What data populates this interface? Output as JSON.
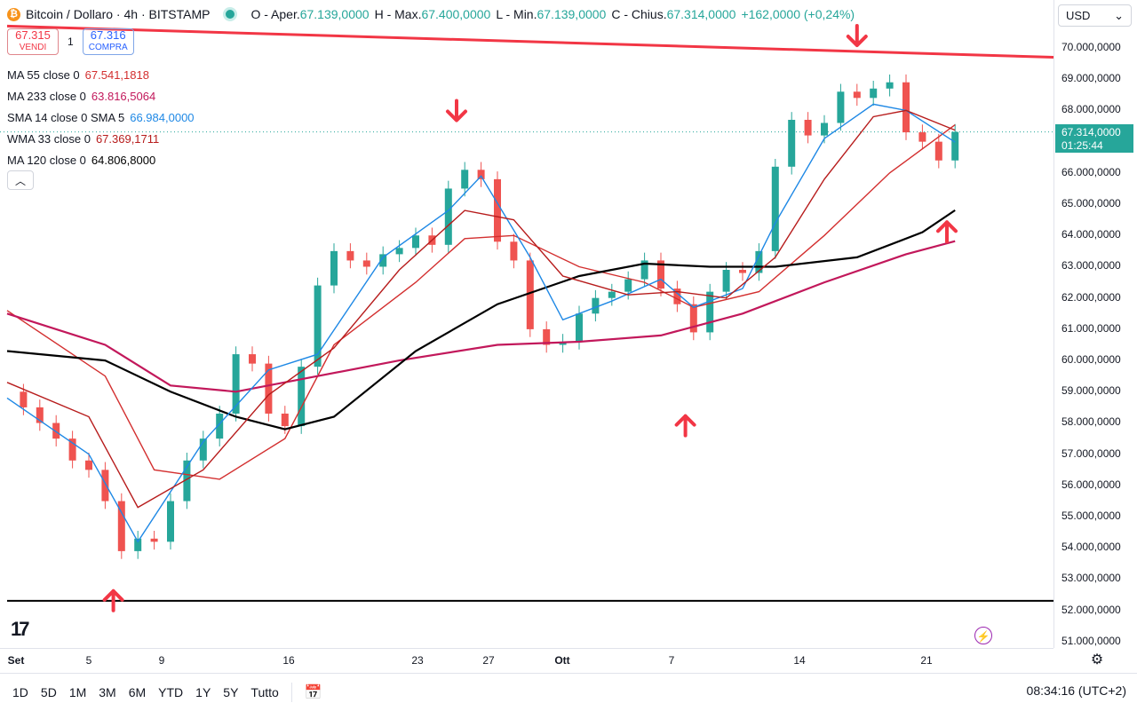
{
  "header": {
    "currency_symbol": "₿",
    "symbol": "Bitcoin / Dollaro · 4h · BITSTAMP",
    "ohlc": [
      {
        "key": "O - Aper.",
        "value": "67.139,0000"
      },
      {
        "key": "H - Max.",
        "value": "67.400,0000"
      },
      {
        "key": "L - Min.",
        "value": "67.139,0000"
      },
      {
        "key": "C - Chius.",
        "value": "67.314,0000"
      }
    ],
    "change": "+162,0000 (+0,24%)"
  },
  "trade": {
    "sell_price": "67.315",
    "sell_label": "VENDI",
    "qty": "1",
    "buy_price": "67.316",
    "buy_label": "COMPRA"
  },
  "legend": [
    {
      "label": "MA 55 close 0",
      "value": "67.541,1818",
      "color": "#d32f2f"
    },
    {
      "label": "MA 233 close 0",
      "value": "63.816,5064",
      "color": "#c2185b"
    },
    {
      "label": "SMA 14 close 0 SMA 5",
      "value": "66.984,0000",
      "color": "#1e88e5"
    },
    {
      "label": "WMA 33 close 0",
      "value": "67.369,1711",
      "color": "#b71c1c"
    },
    {
      "label": "MA 120 close 0",
      "value": "64.806,8000",
      "color": "#000000"
    }
  ],
  "yaxis": {
    "currency": "USD",
    "ticks": [
      "70.000,0000",
      "69.000,0000",
      "68.000,0000",
      "67.000,0000",
      "66.000,0000",
      "65.000,0000",
      "64.000,0000",
      "63.000,0000",
      "62.000,0000",
      "61.000,0000",
      "60.000,0000",
      "59.000,0000",
      "58.000,0000",
      "57.000,0000",
      "56.000,0000",
      "55.000,0000",
      "54.000,0000",
      "53.000,0000",
      "52.000,0000",
      "51.000,0000"
    ],
    "last_price": "67.314,0000",
    "countdown": "01:25:44"
  },
  "xaxis": {
    "ticks": [
      {
        "label": "Set",
        "bold": true
      },
      {
        "label": "5",
        "bold": false
      },
      {
        "label": "9",
        "bold": false
      },
      {
        "label": "16",
        "bold": false
      },
      {
        "label": "23",
        "bold": false
      },
      {
        "label": "27",
        "bold": false
      },
      {
        "label": "Ott",
        "bold": true
      },
      {
        "label": "7",
        "bold": false
      },
      {
        "label": "14",
        "bold": false
      },
      {
        "label": "21",
        "bold": false
      }
    ]
  },
  "bottom": {
    "ranges": [
      "1D",
      "5D",
      "1M",
      "3M",
      "6M",
      "YTD",
      "1Y",
      "5Y",
      "Tutto"
    ],
    "clock": "08:34:16 (UTC+2)"
  },
  "colors": {
    "up": "#26a69a",
    "down": "#ef5350",
    "annotation": "#f23645"
  },
  "chart_data": {
    "type": "line",
    "ylim": [
      50750,
      71000
    ],
    "grid": false,
    "x_days": [
      "Set",
      "5",
      "9",
      "16",
      "23",
      "27",
      "Ott",
      "7",
      "14",
      "21"
    ],
    "series": [
      {
        "name": "Close",
        "color": "#26a69a",
        "values": [
          [
            0,
            59000
          ],
          [
            1,
            58500
          ],
          [
            2,
            58000
          ],
          [
            3,
            57500
          ],
          [
            4,
            56800
          ],
          [
            5,
            56500
          ],
          [
            6,
            55500
          ],
          [
            7,
            53900
          ],
          [
            8,
            54300
          ],
          [
            9,
            54200
          ],
          [
            10,
            55500
          ],
          [
            11,
            56800
          ],
          [
            12,
            57500
          ],
          [
            13,
            58300
          ],
          [
            14,
            60200
          ],
          [
            15,
            59900
          ],
          [
            16,
            58300
          ],
          [
            17,
            57900
          ],
          [
            18,
            59800
          ],
          [
            19,
            62400
          ],
          [
            20,
            63500
          ],
          [
            21,
            63200
          ],
          [
            22,
            63000
          ],
          [
            23,
            63400
          ],
          [
            24,
            63600
          ],
          [
            25,
            64000
          ],
          [
            26,
            63700
          ],
          [
            27,
            65500
          ],
          [
            28,
            66100
          ],
          [
            29,
            65800
          ],
          [
            30,
            63800
          ],
          [
            31,
            63200
          ],
          [
            32,
            61000
          ],
          [
            33,
            60500
          ],
          [
            34,
            60600
          ],
          [
            35,
            61500
          ],
          [
            36,
            62000
          ],
          [
            37,
            62200
          ],
          [
            38,
            62600
          ],
          [
            39,
            63200
          ],
          [
            40,
            62300
          ],
          [
            41,
            61800
          ],
          [
            42,
            60900
          ],
          [
            43,
            62200
          ],
          [
            44,
            62900
          ],
          [
            45,
            62800
          ],
          [
            46,
            63500
          ],
          [
            47,
            66200
          ],
          [
            48,
            67700
          ],
          [
            49,
            67200
          ],
          [
            50,
            67600
          ],
          [
            51,
            68600
          ],
          [
            52,
            68400
          ],
          [
            53,
            68700
          ],
          [
            54,
            68900
          ],
          [
            55,
            67300
          ],
          [
            56,
            67000
          ],
          [
            57,
            66400
          ],
          [
            58,
            67314
          ]
        ]
      },
      {
        "name": "MA 55",
        "color": "#d32f2f",
        "values": [
          [
            0,
            61600
          ],
          [
            6,
            59500
          ],
          [
            9,
            56500
          ],
          [
            13,
            56200
          ],
          [
            17,
            57500
          ],
          [
            20,
            60500
          ],
          [
            25,
            62500
          ],
          [
            28,
            63900
          ],
          [
            31,
            64000
          ],
          [
            35,
            63000
          ],
          [
            39,
            62500
          ],
          [
            42,
            61700
          ],
          [
            46,
            62200
          ],
          [
            50,
            64000
          ],
          [
            54,
            66000
          ],
          [
            58,
            67541
          ]
        ]
      },
      {
        "name": "MA 233",
        "color": "#c2185b",
        "values": [
          [
            0,
            61500
          ],
          [
            6,
            60500
          ],
          [
            10,
            59200
          ],
          [
            14,
            59000
          ],
          [
            18,
            59400
          ],
          [
            24,
            60000
          ],
          [
            30,
            60500
          ],
          [
            35,
            60600
          ],
          [
            40,
            60800
          ],
          [
            45,
            61500
          ],
          [
            50,
            62500
          ],
          [
            55,
            63400
          ],
          [
            58,
            63816
          ]
        ]
      },
      {
        "name": "MA 120",
        "color": "#000000",
        "values": [
          [
            0,
            60300
          ],
          [
            6,
            60000
          ],
          [
            10,
            59000
          ],
          [
            14,
            58200
          ],
          [
            17,
            57800
          ],
          [
            20,
            58200
          ],
          [
            25,
            60300
          ],
          [
            30,
            61800
          ],
          [
            35,
            62700
          ],
          [
            39,
            63100
          ],
          [
            43,
            63000
          ],
          [
            47,
            63000
          ],
          [
            52,
            63300
          ],
          [
            56,
            64100
          ],
          [
            58,
            64806
          ]
        ]
      },
      {
        "name": "SMA 14",
        "color": "#1e88e5",
        "values": [
          [
            0,
            58800
          ],
          [
            5,
            57000
          ],
          [
            8,
            54200
          ],
          [
            12,
            57400
          ],
          [
            16,
            59700
          ],
          [
            19,
            60200
          ],
          [
            23,
            63300
          ],
          [
            27,
            64800
          ],
          [
            29,
            65900
          ],
          [
            32,
            63300
          ],
          [
            34,
            61300
          ],
          [
            37,
            61900
          ],
          [
            40,
            62600
          ],
          [
            42,
            61700
          ],
          [
            45,
            62300
          ],
          [
            47,
            64400
          ],
          [
            50,
            67100
          ],
          [
            53,
            68200
          ],
          [
            55,
            68000
          ],
          [
            58,
            66984
          ]
        ]
      },
      {
        "name": "WMA 33",
        "color": "#b71c1c",
        "values": [
          [
            0,
            59300
          ],
          [
            5,
            58200
          ],
          [
            8,
            55300
          ],
          [
            12,
            56500
          ],
          [
            16,
            58900
          ],
          [
            20,
            60400
          ],
          [
            24,
            62900
          ],
          [
            28,
            64800
          ],
          [
            31,
            64500
          ],
          [
            34,
            62700
          ],
          [
            38,
            62100
          ],
          [
            41,
            62200
          ],
          [
            44,
            62000
          ],
          [
            47,
            63300
          ],
          [
            50,
            65800
          ],
          [
            53,
            67800
          ],
          [
            55,
            68000
          ],
          [
            58,
            67369
          ]
        ]
      }
    ],
    "levels": [
      {
        "kind": "support",
        "from": [
          0,
          52310
        ],
        "to": [
          60,
          52310
        ],
        "color": "#000000"
      },
      {
        "kind": "resistance",
        "from": [
          0,
          70700
        ],
        "to": [
          60,
          69700
        ],
        "color": "#f23645"
      }
    ],
    "arrows": [
      {
        "dir": "up",
        "at": [
          6.5,
          52000
        ]
      },
      {
        "dir": "down",
        "at": [
          27.5,
          67400
        ]
      },
      {
        "dir": "up",
        "at": [
          41.5,
          57600
        ]
      },
      {
        "dir": "down",
        "at": [
          52,
          69800
        ]
      },
      {
        "dir": "up",
        "at": [
          57.5,
          63800
        ]
      }
    ]
  }
}
